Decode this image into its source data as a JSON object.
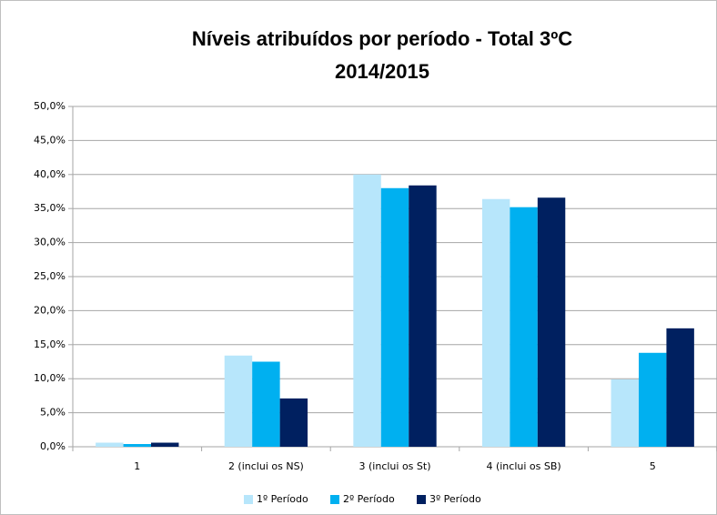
{
  "chart_data": {
    "type": "bar",
    "title": [
      "Níveis atribuídos  por período - Total 3ºC",
      "2014/2015"
    ],
    "categories": [
      "1",
      "2 (inclui os NS)",
      "3 (inclui os St)",
      "4 (inclui os SB)",
      "5"
    ],
    "series": [
      {
        "name": "1º Período",
        "color": "#b7e6fb",
        "values": [
          0.6,
          13.4,
          40.0,
          36.4,
          9.9
        ]
      },
      {
        "name": "2º Período",
        "color": "#00b0f0",
        "values": [
          0.4,
          12.5,
          38.0,
          35.2,
          13.8
        ]
      },
      {
        "name": "3º Período",
        "color": "#002060",
        "values": [
          0.6,
          7.1,
          38.4,
          36.6,
          17.4
        ]
      }
    ],
    "ylim": [
      0,
      50
    ],
    "yticks": [
      {
        "value": 0,
        "label": "0,0%"
      },
      {
        "value": 5,
        "label": "5,0%"
      },
      {
        "value": 10,
        "label": "10,0%"
      },
      {
        "value": 15,
        "label": "15,0%"
      },
      {
        "value": 20,
        "label": "20,0%"
      },
      {
        "value": 25,
        "label": "25,0%"
      },
      {
        "value": 30,
        "label": "30,0%"
      },
      {
        "value": 35,
        "label": "35,0%"
      },
      {
        "value": 40,
        "label": "40,0%"
      },
      {
        "value": 45,
        "label": "45,0%"
      },
      {
        "value": 50,
        "label": "50,0%"
      }
    ],
    "grid": true,
    "legend": "bottom"
  }
}
